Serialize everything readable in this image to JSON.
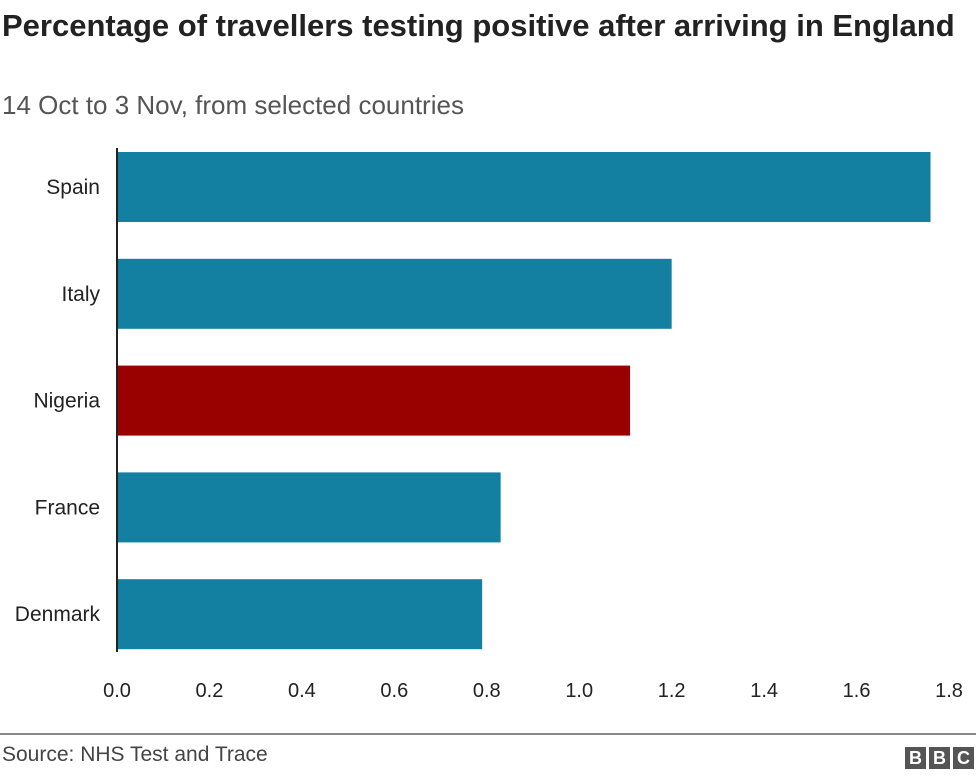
{
  "chart_data": {
    "type": "bar",
    "orientation": "horizontal",
    "title": "Percentage of travellers testing positive after arriving in England",
    "subtitle": "14 Oct to 3 Nov, from selected countries",
    "categories": [
      "Spain",
      "Italy",
      "Nigeria",
      "France",
      "Denmark"
    ],
    "values": [
      1.76,
      1.2,
      1.11,
      0.83,
      0.79
    ],
    "colors": [
      "#1380a1",
      "#1380a1",
      "#990000",
      "#1380a1",
      "#1380a1"
    ],
    "xlabel": "",
    "ylabel": "",
    "xlim": [
      0,
      1.8
    ],
    "xticks": [
      "0.0",
      "0.2",
      "0.4",
      "0.6",
      "0.8",
      "1.0",
      "1.2",
      "1.4",
      "1.6",
      "1.8"
    ],
    "grid": false
  },
  "footer": {
    "source": "Source: NHS Test and Trace",
    "logo": [
      "B",
      "B",
      "C"
    ]
  }
}
